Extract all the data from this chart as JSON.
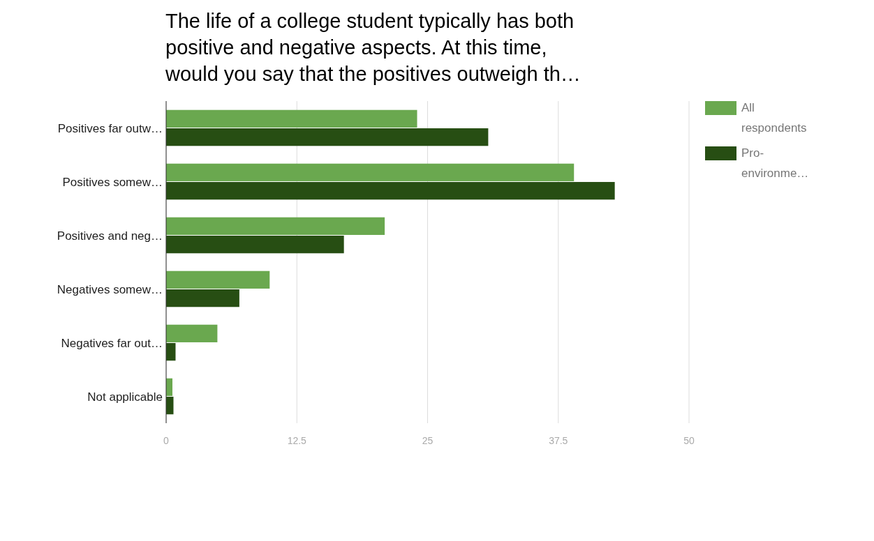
{
  "chart_data": {
    "type": "bar",
    "orientation": "horizontal",
    "title": "The life of a college student typically has both positive and negative aspects. At this time, would you say that the positives outweigh th…",
    "categories": [
      "Positives far outw…",
      "Positives somew…",
      "Positives and neg…",
      "Negatives somew…",
      "Negatives far out…",
      "Not applicable"
    ],
    "series": [
      {
        "name": "All respondents",
        "color": "#6aa84f",
        "values": [
          24.0,
          39.0,
          20.9,
          9.9,
          4.9,
          0.6
        ]
      },
      {
        "name": "Pro-environme…",
        "color": "#274e13",
        "values": [
          30.8,
          42.9,
          17.0,
          7.0,
          0.9,
          0.7
        ]
      }
    ],
    "xlim": [
      0,
      50
    ],
    "xticks": [
      0,
      {
        "value": 12.5,
        "label": "12.5"
      },
      25,
      {
        "value": 37.5,
        "label": "37.5"
      },
      50
    ],
    "grid": "x",
    "legend": "right"
  }
}
